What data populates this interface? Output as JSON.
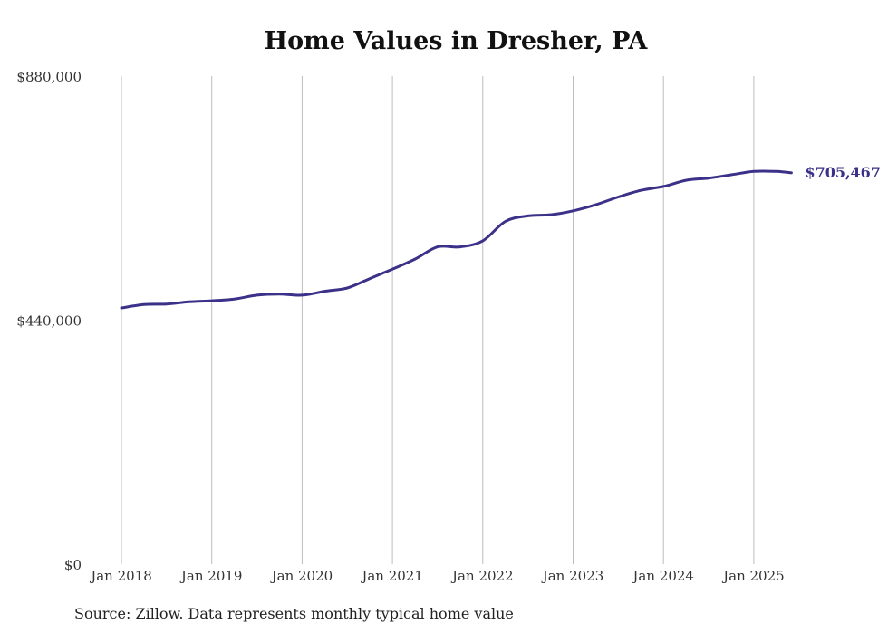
{
  "chart_data": {
    "type": "line",
    "title": "Home Values in Dresher, PA",
    "xlabel": "",
    "ylabel": "",
    "source": "Source: Zillow. Data represents monthly typical home value",
    "ylim": [
      0,
      880000
    ],
    "xlim": [
      "2018-01",
      "2025-06"
    ],
    "y_ticks": [
      "$0",
      "$440,000",
      "$880,000"
    ],
    "x_ticks": [
      "Jan 2018",
      "Jan 2019",
      "Jan 2020",
      "Jan 2021",
      "Jan 2022",
      "Jan 2023",
      "Jan 2024",
      "Jan 2025"
    ],
    "grid": "vertical",
    "line_color": "#3b3189",
    "end_label": "$705,467",
    "series": [
      {
        "points": [
          [
            "2018-01",
            462000
          ],
          [
            "2018-04",
            468000
          ],
          [
            "2018-07",
            469000
          ],
          [
            "2018-10",
            473000
          ],
          [
            "2019-01",
            475000
          ],
          [
            "2019-04",
            478000
          ],
          [
            "2019-07",
            485000
          ],
          [
            "2019-10",
            487000
          ],
          [
            "2020-01",
            485000
          ],
          [
            "2020-04",
            492000
          ],
          [
            "2020-07",
            498000
          ],
          [
            "2020-10",
            515000
          ],
          [
            "2021-01",
            532000
          ],
          [
            "2021-04",
            550000
          ],
          [
            "2021-07",
            572000
          ],
          [
            "2021-10",
            572000
          ],
          [
            "2022-01",
            583000
          ],
          [
            "2022-04",
            618000
          ],
          [
            "2022-07",
            628000
          ],
          [
            "2022-10",
            630000
          ],
          [
            "2023-01",
            637000
          ],
          [
            "2023-04",
            648000
          ],
          [
            "2023-07",
            662000
          ],
          [
            "2023-10",
            674000
          ],
          [
            "2024-01",
            681000
          ],
          [
            "2024-04",
            692000
          ],
          [
            "2024-07",
            696000
          ],
          [
            "2024-10",
            702000
          ],
          [
            "2025-01",
            708000
          ],
          [
            "2025-04",
            708000
          ],
          [
            "2025-06",
            705467
          ]
        ]
      }
    ]
  }
}
